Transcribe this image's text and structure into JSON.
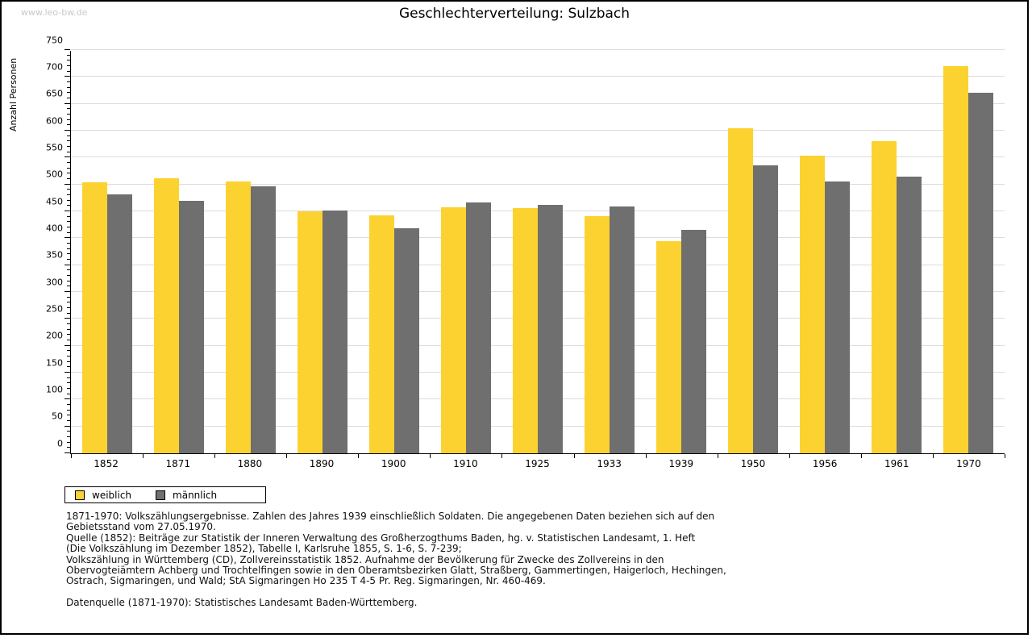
{
  "watermark": "www.leo-bw.de",
  "chart_data": {
    "type": "bar",
    "title": "Geschlechterverteilung: Sulzbach",
    "ylabel": "Anzahl Personen",
    "xlabel": "",
    "ylim": [
      0,
      750
    ],
    "ytick_step": 50,
    "yminor_step": 10,
    "grid": true,
    "legend_position": "bottom-left",
    "categories": [
      "1852",
      "1871",
      "1880",
      "1890",
      "1900",
      "1910",
      "1925",
      "1933",
      "1939",
      "1950",
      "1956",
      "1961",
      "1970"
    ],
    "series": [
      {
        "name": "weiblich",
        "color": "#fcd230",
        "values": [
          504,
          511,
          505,
          450,
          442,
          458,
          456,
          441,
          394,
          605,
          553,
          580,
          720
        ]
      },
      {
        "name": "männlich",
        "color": "#6f6f6f",
        "values": [
          482,
          470,
          496,
          451,
          418,
          466,
          462,
          459,
          416,
          536,
          506,
          515,
          670
        ]
      }
    ]
  },
  "colors": {
    "weiblich": "#fcd230",
    "männlich": "#6f6f6f",
    "gridline": "#dcdcdc",
    "watermark": "#c9c9c9",
    "frame": "#000000"
  },
  "footnotes": {
    "lines": [
      "1871-1970: Volkszählungsergebnisse. Zahlen des Jahres 1939 einschließlich Soldaten. Die angegebenen Daten beziehen sich auf den",
      "Gebietsstand vom 27.05.1970.",
      "Quelle (1852): Beiträge zur Statistik der Inneren Verwaltung des Großherzogthums Baden, hg. v. Statistischen Landesamt, 1. Heft",
      "(Die Volkszählung im Dezember 1852), Tabelle I, Karlsruhe 1855, S. 1-6, S. 7-239;",
      "Volkszählung in Württemberg (CD), Zollvereinsstatistik 1852. Aufnahme der Bevölkerung für Zwecke des Zollvereins in den",
      "Obervogteiämtern Achberg und Trochtelfingen sowie in den Oberamtsbezirken Glatt, Straßberg, Gammertingen, Haigerloch, Hechingen,",
      "Ostrach, Sigmaringen, und Wald; StA Sigmaringen Ho 235 T 4-5 Pr. Reg. Sigmaringen, Nr. 460-469."
    ],
    "datasource": "Datenquelle (1871-1970): Statistisches Landesamt Baden-Württemberg."
  }
}
